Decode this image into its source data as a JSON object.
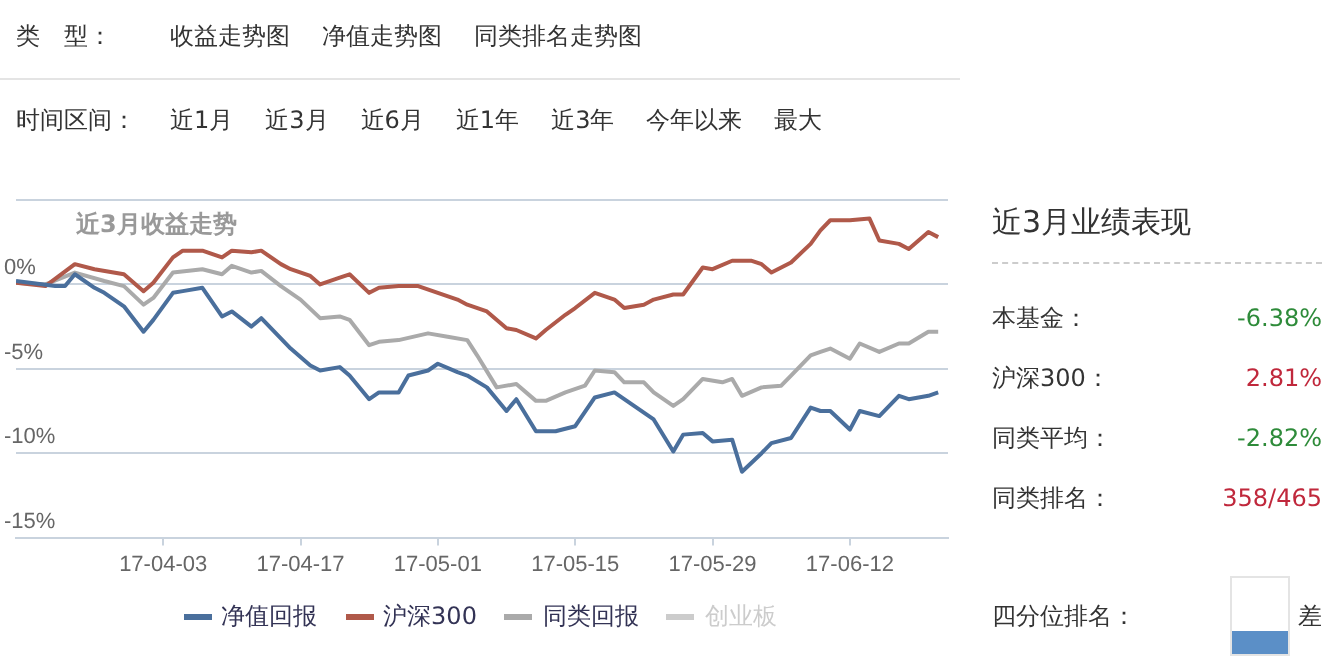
{
  "chart_data": [
    {
      "type": "other",
      "title": "类　型：",
      "annotations": [
        "收益走势图",
        "净值走势图",
        "同类排名走势图"
      ]
    },
    {
      "type": "other",
      "title": "时间区间：",
      "annotations": [
        "近1月",
        "近3月",
        "近6月",
        "近1年",
        "近3年",
        "今年以来",
        "最大"
      ]
    },
    {
      "type": "line",
      "title": "近3月收益走势",
      "legend": "bottom",
      "grid": "y",
      "xlim": [
        "--03-19",
        "--06-22"
      ],
      "ylim": [
        -15,
        5
      ],
      "xticks": [
        {
          "value": "--04-03",
          "label": "17-04-03"
        },
        {
          "value": "--04-17",
          "label": "17-04-17"
        },
        {
          "value": "--05-01",
          "label": "17-05-01"
        },
        {
          "value": "--05-15",
          "label": "17-05-15"
        },
        {
          "value": "--05-29",
          "label": "17-05-29"
        },
        {
          "value": "--06-12",
          "label": "17-06-12"
        }
      ],
      "yticks": [
        {
          "value": 5,
          "label": null
        },
        {
          "value": 0,
          "label": "0%"
        },
        {
          "value": -5,
          "label": "-5%"
        },
        {
          "value": -10,
          "label": "-10%"
        },
        {
          "value": -15,
          "label": "-15%"
        }
      ],
      "series": [
        {
          "name": "净值回报",
          "color": "#4a6f9c",
          "x": [
            "--03-19",
            "--03-23",
            "--03-24",
            "--03-25",
            "--03-27",
            "--03-28",
            "--03-30",
            "--04-01",
            "--04-02",
            "--04-04",
            "--04-05",
            "--04-07",
            "--04-09",
            "--04-10",
            "--04-12",
            "--04-13",
            "--04-16",
            "--04-18",
            "--04-19",
            "--04-21",
            "--04-22",
            "--04-24",
            "--04-25",
            "--04-27",
            "--04-28",
            "--04-30",
            "--05-01",
            "--05-03",
            "--05-04",
            "--05-06",
            "--05-08",
            "--05-09",
            "--05-11",
            "--05-13",
            "--05-15",
            "--05-17",
            "--05-19",
            "--05-21",
            "--05-23",
            "--05-25",
            "--05-26",
            "--05-28",
            "--05-29",
            "--05-31",
            "--06-01",
            "--06-03",
            "--06-04",
            "--06-06",
            "--06-08",
            "--06-09",
            "--06-10",
            "--06-12",
            "--06-13",
            "--06-15",
            "--06-17",
            "--06-18",
            "--06-20",
            "--06-21"
          ],
          "values": [
            0.2,
            -0.1,
            -0.1,
            0.6,
            -0.2,
            -0.5,
            -1.3,
            -2.8,
            -2.1,
            -0.5,
            -0.4,
            -0.2,
            -1.9,
            -1.6,
            -2.5,
            -2.0,
            -3.8,
            -4.8,
            -5.1,
            -4.9,
            -5.4,
            -6.8,
            -6.4,
            -6.4,
            -5.4,
            -5.1,
            -4.7,
            -5.2,
            -5.4,
            -6.1,
            -7.5,
            -6.8,
            -8.7,
            -8.7,
            -8.4,
            -6.7,
            -6.4,
            -7.2,
            -8.0,
            -9.9,
            -8.9,
            -8.8,
            -9.3,
            -9.2,
            -11.1,
            -10.0,
            -9.4,
            -9.1,
            -7.3,
            -7.5,
            -7.5,
            -8.6,
            -7.5,
            -7.8,
            -6.6,
            -6.8,
            -6.6,
            -6.4
          ]
        },
        {
          "name": "沪深300",
          "color": "#b0594a",
          "x": [
            "--03-19",
            "--03-22",
            "--03-25",
            "--03-27",
            "--03-30",
            "--04-01",
            "--04-02",
            "--04-04",
            "--04-05",
            "--04-07",
            "--04-09",
            "--04-10",
            "--04-12",
            "--04-13",
            "--04-15",
            "--04-16",
            "--04-18",
            "--04-19",
            "--04-21",
            "--04-22",
            "--04-24",
            "--04-25",
            "--04-27",
            "--04-29",
            "--05-01",
            "--05-03",
            "--05-04",
            "--05-06",
            "--05-08",
            "--05-09",
            "--05-11",
            "--05-12",
            "--05-14",
            "--05-15",
            "--05-17",
            "--05-19",
            "--05-20",
            "--05-22",
            "--05-23",
            "--05-25",
            "--05-26",
            "--05-28",
            "--05-29",
            "--05-31",
            "--06-02",
            "--06-03",
            "--06-04",
            "--06-06",
            "--06-08",
            "--06-09",
            "--06-10",
            "--06-12",
            "--06-14",
            "--06-15",
            "--06-17",
            "--06-18",
            "--06-20",
            "--06-21"
          ],
          "values": [
            0.1,
            -0.1,
            1.2,
            0.9,
            0.6,
            -0.4,
            0.1,
            1.6,
            2.0,
            2.0,
            1.6,
            2.0,
            1.9,
            2.0,
            1.2,
            0.9,
            0.5,
            0.0,
            0.4,
            0.6,
            -0.5,
            -0.2,
            -0.1,
            -0.1,
            -0.5,
            -0.9,
            -1.2,
            -1.6,
            -2.6,
            -2.7,
            -3.2,
            -2.7,
            -1.8,
            -1.4,
            -0.5,
            -0.9,
            -1.4,
            -1.2,
            -0.9,
            -0.6,
            -0.6,
            1.0,
            0.9,
            1.4,
            1.4,
            1.2,
            0.7,
            1.3,
            2.4,
            3.2,
            3.8,
            3.8,
            3.9,
            2.6,
            2.4,
            2.1,
            3.1,
            2.8
          ]
        },
        {
          "name": "同类回报",
          "color": "#aaaaaa",
          "x": [
            "--03-19",
            "--03-22",
            "--03-25",
            "--03-28",
            "--03-30",
            "--04-01",
            "--04-02",
            "--04-04",
            "--04-07",
            "--04-09",
            "--04-10",
            "--04-12",
            "--04-13",
            "--04-15",
            "--04-17",
            "--04-19",
            "--04-21",
            "--04-22",
            "--04-24",
            "--04-25",
            "--04-27",
            "--04-30",
            "--05-02",
            "--05-04",
            "--05-05",
            "--05-07",
            "--05-09",
            "--05-11",
            "--05-12",
            "--05-14",
            "--05-16",
            "--05-17",
            "--05-19",
            "--05-20",
            "--05-22",
            "--05-23",
            "--05-25",
            "--05-26",
            "--05-28",
            "--05-30",
            "--05-31",
            "--06-01",
            "--06-03",
            "--06-05",
            "--06-06",
            "--06-08",
            "--06-09",
            "--06-10",
            "--06-12",
            "--06-13",
            "--06-15",
            "--06-17",
            "--06-18",
            "--06-20",
            "--06-21"
          ],
          "values": [
            0.1,
            0.0,
            0.7,
            0.2,
            -0.1,
            -1.2,
            -0.8,
            0.7,
            0.9,
            0.6,
            1.1,
            0.7,
            0.8,
            -0.1,
            -0.9,
            -2.0,
            -1.9,
            -2.1,
            -3.6,
            -3.4,
            -3.3,
            -2.9,
            -3.1,
            -3.3,
            -4.2,
            -6.1,
            -5.9,
            -6.9,
            -6.9,
            -6.4,
            -6.0,
            -5.1,
            -5.2,
            -5.8,
            -5.8,
            -6.4,
            -7.2,
            -6.8,
            -5.6,
            -5.8,
            -5.6,
            -6.6,
            -6.1,
            -6.0,
            -5.4,
            -4.2,
            -4.0,
            -3.8,
            -4.4,
            -3.5,
            -4.0,
            -3.5,
            -3.5,
            -2.8,
            -2.8
          ]
        },
        {
          "name": "创业板",
          "color": "#cccccc"
        }
      ]
    },
    {
      "type": "other",
      "title": "近3月业绩表现",
      "annotations": [
        "本基金：",
        "-6.38%",
        "沪深300：",
        "2.81%",
        "同类平均：",
        "-2.82%",
        "同类排名：",
        "358/465",
        "四分位排名：",
        "差"
      ]
    }
  ]
}
